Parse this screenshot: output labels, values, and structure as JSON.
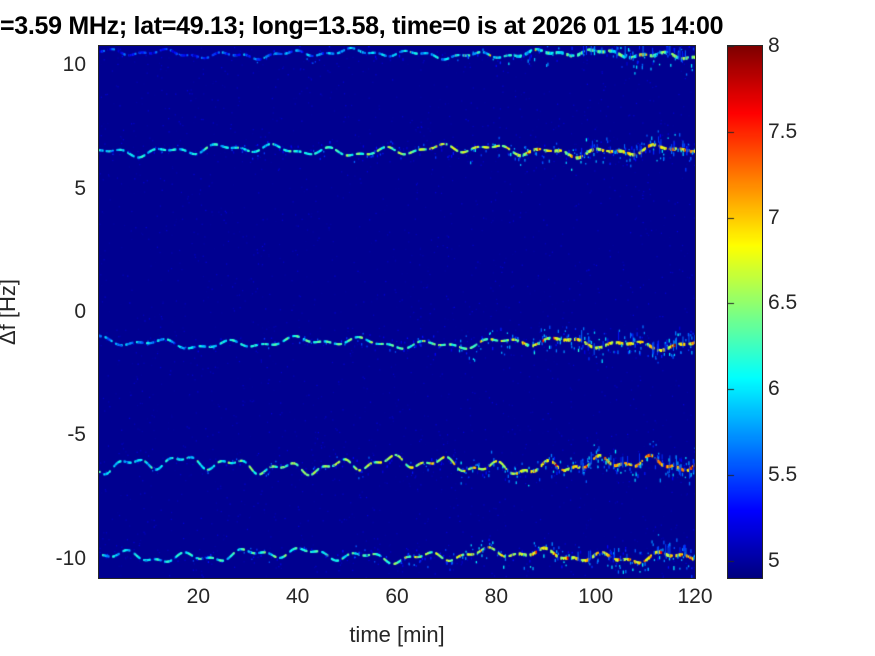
{
  "title": "=3.59 MHz;  lat=49.13; long=13.58, time=0 is at 2026 01 15 14:00",
  "chart_data": {
    "type": "heatmap",
    "title": "=3.59 MHz;  lat=49.13; long=13.58, time=0 is at 2026 01 15 14:00",
    "xlabel": "time [min]",
    "ylabel": "Δf [Hz]",
    "xlim": [
      0,
      120
    ],
    "ylim": [
      -10.77,
      10.77
    ],
    "x_ticks": [
      20,
      40,
      60,
      80,
      100,
      120
    ],
    "y_ticks": [
      10,
      5,
      0,
      -5,
      -10
    ],
    "grid": false,
    "colormap": "jet",
    "background_value": 4.95,
    "background_color": "#000090",
    "colorbar": {
      "min": 4.9,
      "max": 8,
      "ticks": [
        8,
        7.5,
        7,
        6.5,
        6,
        5.5,
        5
      ],
      "position": "right"
    },
    "traces": [
      {
        "name": "echo-top-edge-clipped",
        "center_hz": 10.45,
        "amplitude_hz": 0.16,
        "periods_min": [
          12.5,
          5.3
        ],
        "phase": [
          1.2,
          4.5,
          0.8
        ],
        "intensity_start": 5.35,
        "intensity_end": 6.35,
        "speckle": 0.18
      },
      {
        "name": "echo-plus-6.5Hz",
        "center_hz": 6.55,
        "amplitude_hz": 0.2,
        "periods_min": [
          11.0,
          5.9
        ],
        "phase": [
          0.3,
          2.7,
          3.9
        ],
        "intensity_start": 5.85,
        "intensity_end": 7.0,
        "speckle": 0.3
      },
      {
        "name": "echo-minus-1.2Hz",
        "center_hz": -1.25,
        "amplitude_hz": 0.2,
        "periods_min": [
          13.5,
          6.4
        ],
        "phase": [
          2.1,
          0.9,
          1.7
        ],
        "intensity_start": 5.8,
        "intensity_end": 6.9,
        "speckle": 0.28
      },
      {
        "name": "echo-minus-6.2Hz",
        "center_hz": -6.2,
        "amplitude_hz": 0.3,
        "periods_min": [
          10.5,
          5.1
        ],
        "phase": [
          4.2,
          3.3,
          5.6
        ],
        "intensity_start": 6.0,
        "intensity_end": 7.15,
        "speckle": 0.35
      },
      {
        "name": "echo-minus-9.8Hz",
        "center_hz": -9.85,
        "amplitude_hz": 0.24,
        "periods_min": [
          12.0,
          5.6
        ],
        "phase": [
          5.0,
          1.5,
          2.6
        ],
        "intensity_start": 5.85,
        "intensity_end": 7.0,
        "speckle": 0.3
      }
    ],
    "note": "Wavy dashed spectral echo traces on uniform dark-blue background; intensity and vertical speckle spread increase toward t=120 min"
  }
}
